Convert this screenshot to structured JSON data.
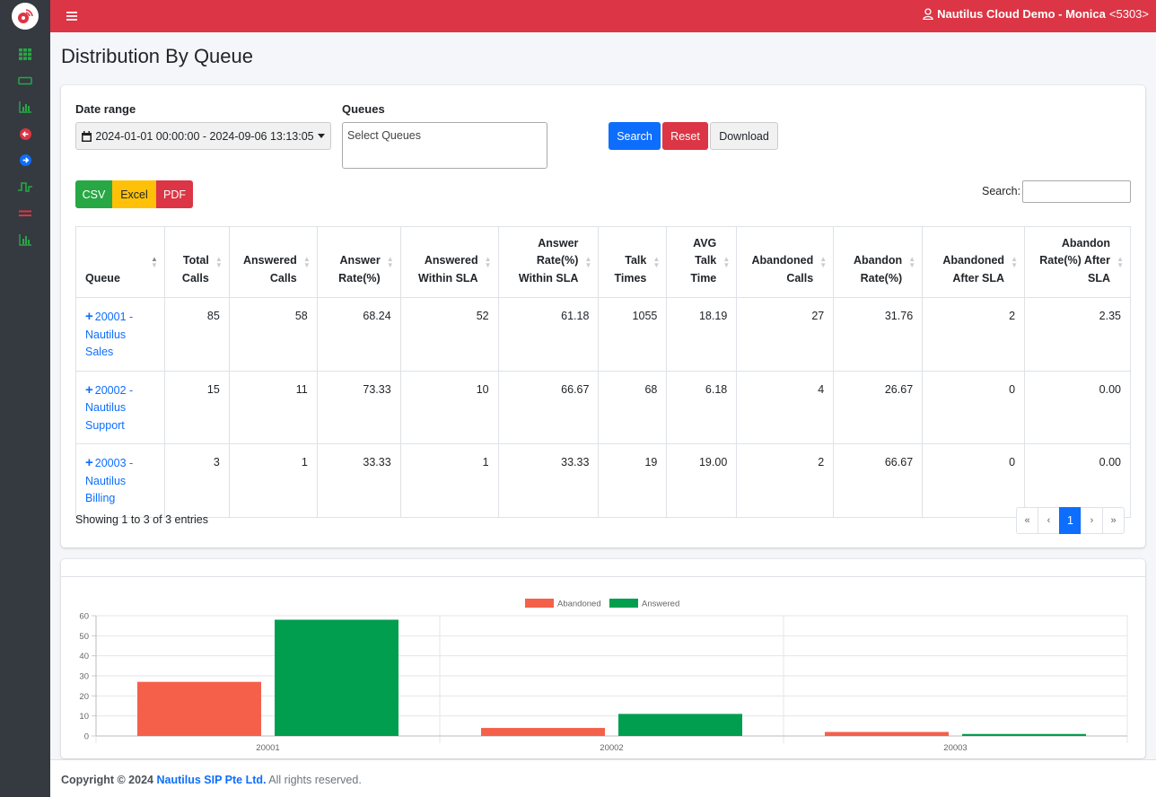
{
  "header": {
    "user_name": "Nautilus Cloud Demo - Monica",
    "user_ext": "<5303>"
  },
  "page": {
    "title": "Distribution By Queue"
  },
  "filters": {
    "date_label": "Date range",
    "date_value": "2024-01-01 00:00:00 - 2024-09-06 13:13:05",
    "queues_label": "Queues",
    "queues_placeholder": "Select Queues",
    "search_btn": "Search",
    "reset_btn": "Reset",
    "download_btn": "Download"
  },
  "export": {
    "csv": "CSV",
    "excel": "Excel",
    "pdf": "PDF"
  },
  "table_search_label": "Search:",
  "table": {
    "headers": [
      [
        "Queue"
      ],
      [
        "Total",
        "Calls"
      ],
      [
        "Answered",
        "Calls"
      ],
      [
        "Answer",
        "Rate(%)"
      ],
      [
        "Answered",
        "Within SLA"
      ],
      [
        "Answer",
        "Rate(%)",
        "Within SLA"
      ],
      [
        "Talk",
        "Times"
      ],
      [
        "AVG",
        "Talk",
        "Time"
      ],
      [
        "Abandoned",
        "Calls"
      ],
      [
        "Abandon",
        "Rate(%)"
      ],
      [
        "Abandoned",
        "After SLA"
      ],
      [
        "Abandon",
        "Rate(%) After",
        "SLA"
      ]
    ],
    "rows": [
      {
        "queue": [
          "20001 -",
          "Nautilus Sales"
        ],
        "cells": [
          "85",
          "58",
          "68.24",
          "52",
          "61.18",
          "1055",
          "18.19",
          "27",
          "31.76",
          "2",
          "2.35"
        ]
      },
      {
        "queue": [
          "20002 -",
          "Nautilus",
          "Support"
        ],
        "cells": [
          "15",
          "11",
          "73.33",
          "10",
          "66.67",
          "68",
          "6.18",
          "4",
          "26.67",
          "0",
          "0.00"
        ]
      },
      {
        "queue": [
          "20003 -",
          "Nautilus",
          "Billing"
        ],
        "cells": [
          "3",
          "1",
          "33.33",
          "1",
          "33.33",
          "19",
          "19.00",
          "2",
          "66.67",
          "0",
          "0.00"
        ]
      }
    ]
  },
  "table_info": "Showing 1 to 3 of 3 entries",
  "pagination": {
    "first": "«",
    "prev": "‹",
    "current": "1",
    "next": "›",
    "last": "»"
  },
  "chart_data": {
    "type": "bar",
    "categories": [
      "20001",
      "20002",
      "20003"
    ],
    "series": [
      {
        "name": "Abandoned",
        "values": [
          27,
          4,
          2
        ],
        "color": "#f4604a"
      },
      {
        "name": "Answered",
        "values": [
          58,
          11,
          1
        ],
        "color": "#009e4e"
      }
    ],
    "ylim": [
      0,
      60
    ],
    "yticks": [
      0,
      10,
      20,
      30,
      40,
      50,
      60
    ],
    "grid": true,
    "legend": "top-center"
  },
  "footer": {
    "prefix": "Copyright © 2024",
    "company": "Nautilus SIP Pte Ltd.",
    "suffix": "All rights reserved."
  },
  "colors": {
    "topbar": "#dc3545",
    "sidebar": "#343a40",
    "primary": "#0d6efd",
    "success": "#28a745",
    "warning": "#ffc107"
  }
}
